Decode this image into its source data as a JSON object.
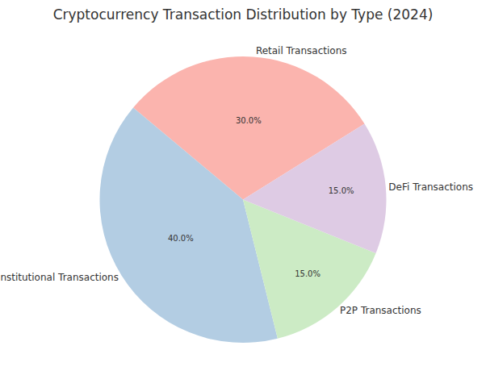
{
  "chart_data": {
    "type": "pie",
    "title": "Cryptocurrency Transaction Distribution by Type (2024)",
    "categories": [
      "Retail Transactions",
      "Institutional Transactions",
      "P2P Transactions",
      "DeFi Transactions"
    ],
    "values": [
      30,
      40,
      15,
      15
    ],
    "value_labels": [
      "30.0%",
      "40.0%",
      "15.0%",
      "15.0%"
    ],
    "colors": [
      "#fbb4ae",
      "#b3cde3",
      "#ccebc5",
      "#decbe4"
    ],
    "data_labels": true
  }
}
